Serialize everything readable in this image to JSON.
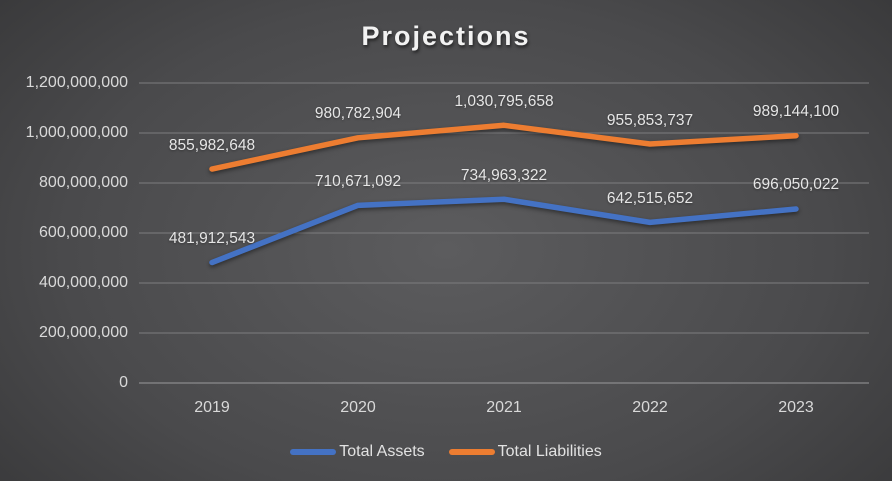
{
  "title": "Projections",
  "chart_data": {
    "type": "line",
    "title": "Projections",
    "categories": [
      "2019",
      "2020",
      "2021",
      "2022",
      "2023"
    ],
    "series": [
      {
        "name": "Total Assets",
        "color": "#4472C4",
        "values": [
          481912543,
          710671092,
          734963322,
          642515652,
          696050022
        ],
        "labels": [
          "481,912,543",
          "710,671,092",
          "734,963,322",
          "642,515,652",
          "696,050,022"
        ]
      },
      {
        "name": "Total Liabilities",
        "color": "#ED7D31",
        "values": [
          855982648,
          980782904,
          1030795658,
          955853737,
          989144100
        ],
        "labels": [
          "855,982,648",
          "980,782,904",
          "1,030,795,658",
          "955,853,737",
          "989,144,100"
        ]
      }
    ],
    "xlabel": "",
    "ylabel": "",
    "ylim": [
      0,
      1200000000
    ],
    "y_tick_step": 200000000,
    "y_tick_labels": [
      "0",
      "200,000,000",
      "400,000,000",
      "600,000,000",
      "800,000,000",
      "1,000,000,000",
      "1,200,000,000"
    ],
    "grid": true,
    "legend_position": "bottom",
    "data_labels_shown": true
  },
  "colors": {
    "background_center": "#5c5c5e",
    "background_edge": "#262627",
    "gridline": "#7d7d7f",
    "axis_text": "#d9d9d9",
    "data_label_text": "#e6e6e6",
    "title_text": "#f2f2f2",
    "series_blue": "#4472C4",
    "series_orange": "#ED7D31"
  }
}
